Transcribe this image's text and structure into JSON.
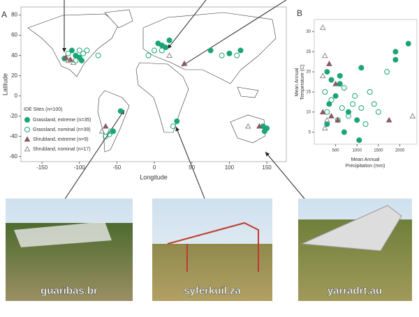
{
  "chart_data": [
    {
      "type": "scatter",
      "panel_label": "A",
      "xlabel": "Longitude",
      "ylabel": "Latitude",
      "legend_title": "IDE Sites (n=100)",
      "xlim": [
        -178,
        176
      ],
      "ylim": [
        -65,
        88
      ],
      "xticks": [
        -150,
        -100,
        -50,
        0,
        50,
        100,
        150
      ],
      "yticks": [
        -60,
        -40,
        -20,
        0,
        20,
        40,
        60,
        80
      ],
      "series": [
        {
          "name": "Grassland, extreme (n=35)",
          "color": "#1aa577",
          "marker": "circle",
          "filled": true,
          "x": [
            -105,
            -100,
            -110,
            -97,
            -120,
            10,
            15,
            5,
            20,
            75,
            100,
            115,
            30,
            -45,
            -55,
            145,
            150,
            147
          ],
          "values": [
            40,
            38,
            45,
            35,
            37,
            50,
            48,
            52,
            55,
            45,
            42,
            45,
            -25,
            -15,
            -35,
            -30,
            -32,
            -35
          ]
        },
        {
          "name": "Grassland, nominal (n=39)",
          "color": "#1aa577",
          "marker": "circle",
          "filled": false,
          "x": [
            -105,
            -95,
            -90,
            -115,
            -100,
            -75,
            10,
            0,
            -8,
            110,
            90,
            -58,
            -60,
            -65,
            25
          ],
          "values": [
            35,
            42,
            45,
            42,
            45,
            40,
            45,
            45,
            40,
            40,
            40,
            -35,
            -38,
            -40,
            -30
          ]
        },
        {
          "name": "Shrubland, extreme (n=9)",
          "color": "#8b5a5e",
          "marker": "triangle",
          "filled": true,
          "x": [
            -118,
            -112,
            -65,
            140,
            40
          ],
          "values": [
            38,
            36,
            -30,
            -30,
            32
          ]
        },
        {
          "name": "Shrubland, nominal (n=17)",
          "color": "#8a8a8a",
          "marker": "triangle",
          "filled": false,
          "x": [
            -115,
            -108,
            20,
            125,
            -70
          ],
          "values": [
            35,
            33,
            40,
            -30,
            -35
          ]
        }
      ]
    },
    {
      "type": "scatter",
      "panel_label": "B",
      "xlabel": [
        "Mean Annual",
        "Precipitation (mm)"
      ],
      "ylabel": [
        "Mean Annual",
        "Temperature (C)"
      ],
      "xlim": [
        0,
        2400
      ],
      "ylim": [
        2,
        33
      ],
      "xticks": [
        500,
        1000,
        1500,
        2000
      ],
      "yticks": [
        5,
        10,
        15,
        20,
        25,
        30
      ],
      "series": [
        {
          "name": "Grassland, extreme (n=35)",
          "color": "#1aa577",
          "marker": "circle",
          "filled": true,
          "x": [
            300,
            400,
            600,
            350,
            500,
            800,
            1000,
            300,
            700,
            1100,
            1900,
            1900,
            2200,
            600,
            1050
          ],
          "values": [
            20,
            18,
            17,
            12,
            14,
            10,
            8,
            7,
            5,
            21,
            23,
            25,
            27,
            19,
            3
          ]
        },
        {
          "name": "Grassland, nominal (n=39)",
          "color": "#1aa577",
          "marker": "circle",
          "filled": false,
          "x": [
            250,
            400,
            700,
            900,
            1100,
            800,
            1200,
            1300,
            1500,
            1700,
            300,
            550,
            950,
            1400,
            650
          ],
          "values": [
            15,
            13,
            16,
            12,
            11,
            9,
            7,
            15,
            10,
            20,
            10,
            8,
            14,
            12,
            11
          ]
        },
        {
          "name": "Shrubland, extreme (n=9)",
          "color": "#8b5a5e",
          "marker": "triangle",
          "filled": true,
          "x": [
            200,
            400,
            500,
            550,
            1750,
            350
          ],
          "values": [
            10,
            9,
            17,
            8,
            8,
            22
          ]
        },
        {
          "name": "Shrubland, nominal (n=17)",
          "color": "#8a8a8a",
          "marker": "triangle",
          "filled": false,
          "x": [
            200,
            250,
            200,
            300,
            2300,
            250
          ],
          "values": [
            31,
            24,
            19,
            8,
            9,
            6
          ]
        }
      ]
    }
  ],
  "photos": [
    {
      "label": "guaribas.br"
    },
    {
      "label": "syferkuil.za"
    },
    {
      "label": "yarradrt.au"
    }
  ]
}
